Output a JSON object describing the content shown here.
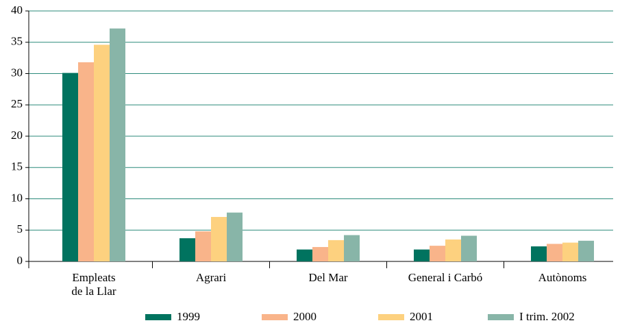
{
  "chart_data": {
    "type": "bar",
    "categories": [
      "Empleats\nde la Llar",
      "Agrari",
      "Del Mar",
      "General i Carbó",
      "Autònoms"
    ],
    "series": [
      {
        "name": "1999",
        "color": "#00735f",
        "values": [
          30.1,
          3.7,
          1.9,
          1.9,
          2.4
        ]
      },
      {
        "name": "2000",
        "color": "#f9b48a",
        "values": [
          31.8,
          4.8,
          2.3,
          2.5,
          2.8
        ]
      },
      {
        "name": "2001",
        "color": "#fdd17f",
        "values": [
          34.6,
          7.1,
          3.4,
          3.5,
          3.0
        ]
      },
      {
        "name": "I trim. 2002",
        "color": "#88b5a8",
        "values": [
          37.2,
          7.8,
          4.2,
          4.1,
          3.3
        ]
      }
    ],
    "ylim": [
      0,
      40
    ],
    "yticks": [
      0,
      5,
      10,
      15,
      20,
      25,
      30,
      35,
      40
    ],
    "grid": true,
    "legend": "bottom"
  }
}
